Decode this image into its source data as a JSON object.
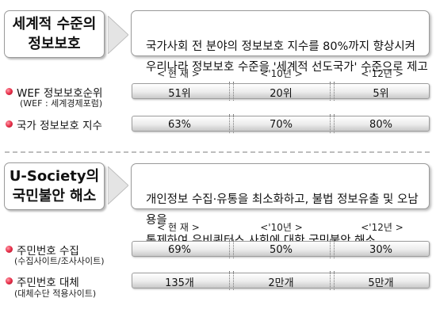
{
  "section1": {
    "title": "세계적 수준의\n정보보호",
    "description": "국가사회 전 분야의 정보보호 지수를 80%까지 향상시켜\n우리나라 정보보호 수준을 '세계적 선도국가' 수준으로 제고",
    "columns": [
      "< 현 재 >",
      "<'10년 >",
      "<'12년 >"
    ],
    "rows": [
      {
        "label": "WEF 정보보호순위",
        "sublabel": "(WEF : 세계경제포럼)",
        "values": [
          "51위",
          "20위",
          "5위"
        ]
      },
      {
        "label": "국가 정보보호 지수",
        "sublabel": "",
        "values": [
          "63%",
          "70%",
          "80%"
        ]
      }
    ]
  },
  "section2": {
    "title": "U-Society의\n국민불안 해소",
    "description": "개인정보 수집·유통을 최소화하고, 불법 정보유출 및 오남용을\n통제하여 유비쿼터스 사회에 대한 국민불안 해소",
    "columns": [
      "< 현 재 >",
      "<'10년 >",
      "<'12년 >"
    ],
    "rows": [
      {
        "label": "주민번호 수집",
        "sublabel": "(수집사이트/조사사이트)",
        "values": [
          "69%",
          "50%",
          "30%"
        ]
      },
      {
        "label": "주민번호 대체",
        "sublabel": "(대체수단 적용사이트)",
        "values": [
          "135개",
          "2만개",
          "5만개"
        ]
      }
    ]
  },
  "colors": {
    "bullet": "#e8304a",
    "box_border": "#9a9a9a",
    "arrow": "#cfcfcf",
    "divider": "#bdbdbd"
  }
}
